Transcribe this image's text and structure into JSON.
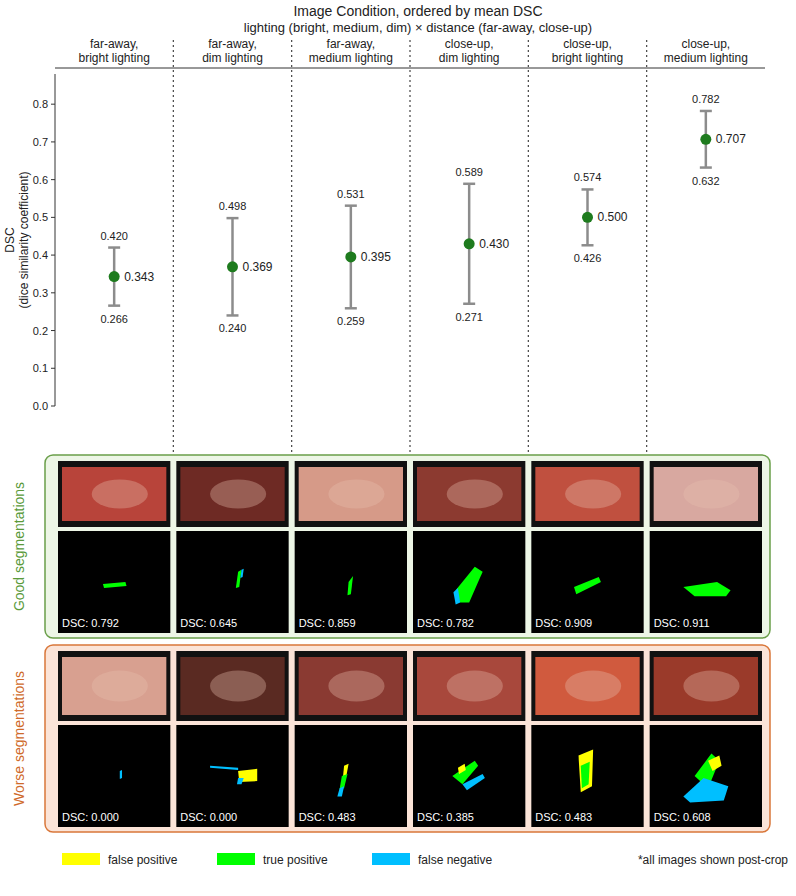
{
  "chart_data": {
    "type": "dot",
    "title": "Image Condition, ordered by mean DSC",
    "subtitle": "lighting (bright, medium, dim) × distance (far-away, close-up)",
    "y_label": "DSC\n(dice similarity coefficient)",
    "categories": [
      "far-away,\nbright lighting",
      "far-away,\ndim lighting",
      "far-away,\nmedium lighting",
      "close-up,\ndim lighting",
      "close-up,\nbright lighting",
      "close-up,\nmedium lighting"
    ],
    "values": [
      0.343,
      0.369,
      0.395,
      0.43,
      0.5,
      0.707
    ],
    "value_labels": [
      "0.343",
      "0.369",
      "0.395",
      "0.430",
      "0.500",
      "0.707"
    ],
    "lower": [
      0.266,
      0.24,
      0.259,
      0.271,
      0.426,
      0.632
    ],
    "lower_labels": [
      "0.266",
      "0.240",
      "0.259",
      "0.271",
      "0.426",
      "0.632"
    ],
    "upper": [
      0.42,
      0.498,
      0.531,
      0.589,
      0.574,
      0.782
    ],
    "upper_labels": [
      "0.420",
      "0.498",
      "0.531",
      "0.589",
      "0.574",
      "0.782"
    ],
    "color": "#1e7b1e",
    "ylim": [
      0,
      0.88
    ],
    "yticks": [
      {
        "value": 0,
        "label": "0.0"
      },
      0.1,
      0.2,
      0.3,
      0.4,
      0.5,
      0.6,
      0.7,
      0.8
    ],
    "grid": false,
    "data_labels": true
  },
  "panels": {
    "rows": [
      {
        "title": "Good segmentations",
        "dsc": [
          "DSC: 0.792",
          "DSC: 0.645",
          "DSC: 0.859",
          "DSC: 0.782",
          "DSC: 0.909",
          "DSC: 0.911"
        ]
      },
      {
        "title": "Worse segmentations",
        "dsc": [
          "DSC: 0.000",
          "DSC: 0.000",
          "DSC: 0.483",
          "DSC: 0.385",
          "DSC: 0.483",
          "DSC: 0.608"
        ]
      }
    ],
    "legend": [
      {
        "label": "false positive",
        "color": "#ffff00"
      },
      {
        "label": "true positive",
        "color": "#00ff00"
      },
      {
        "label": "false negative",
        "color": "#00bfff"
      }
    ],
    "footnote": "*all images shown post-crop"
  }
}
